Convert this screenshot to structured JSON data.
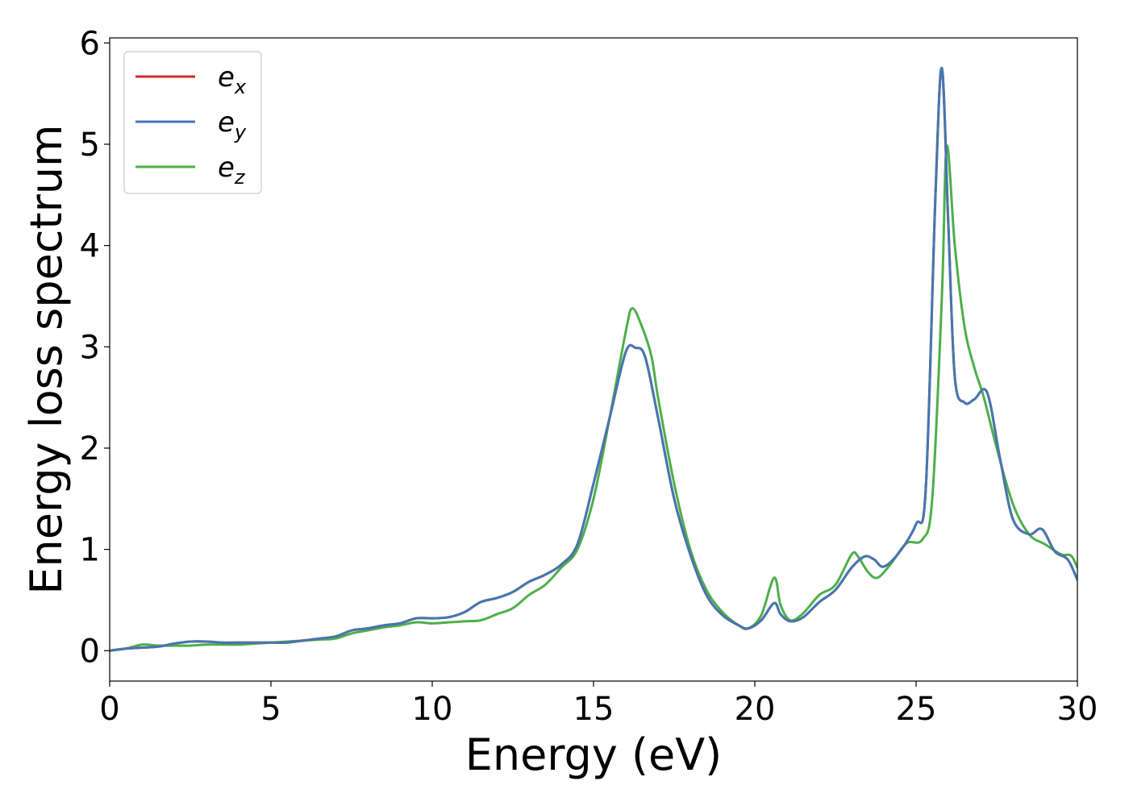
{
  "chart_data": {
    "type": "line",
    "title": "",
    "xlabel": "Energy (eV)",
    "ylabel": "Energy loss spectrum",
    "xlim": [
      0,
      30
    ],
    "ylim": [
      -0.3,
      6.05
    ],
    "xticks": [
      0,
      5,
      10,
      15,
      20,
      25,
      30
    ],
    "yticks": [
      0,
      1,
      2,
      3,
      4,
      5,
      6
    ],
    "grid": false,
    "legend_position": "top-left",
    "series": [
      {
        "name": "e_x",
        "legend_base": "e",
        "legend_sub": "x",
        "color": "#d62728",
        "x": [
          0,
          0.5,
          1,
          1.5,
          2,
          2.5,
          3,
          3.5,
          4,
          4.5,
          5,
          5.5,
          6,
          6.5,
          7,
          7.5,
          8,
          8.5,
          9,
          9.5,
          10,
          10.5,
          11,
          11.5,
          12,
          12.5,
          13,
          13.5,
          14,
          14.5,
          15,
          15.5,
          16,
          16.3,
          16.6,
          17,
          17.5,
          18,
          18.5,
          19,
          19.5,
          19.8,
          20.2,
          20.6,
          20.8,
          21.1,
          21.5,
          22,
          22.5,
          23,
          23.4,
          23.7,
          24,
          24.5,
          25,
          25.3,
          25.6,
          25.8,
          26,
          26.2,
          26.5,
          26.8,
          27.2,
          27.6,
          28,
          28.5,
          28.9,
          29.3,
          29.7,
          30
        ],
        "y": [
          0.0,
          0.02,
          0.03,
          0.04,
          0.07,
          0.09,
          0.09,
          0.08,
          0.08,
          0.08,
          0.08,
          0.08,
          0.1,
          0.12,
          0.14,
          0.2,
          0.22,
          0.25,
          0.27,
          0.32,
          0.32,
          0.33,
          0.38,
          0.48,
          0.52,
          0.58,
          0.68,
          0.75,
          0.85,
          1.05,
          1.65,
          2.3,
          2.95,
          2.99,
          2.9,
          2.3,
          1.5,
          0.95,
          0.55,
          0.35,
          0.25,
          0.22,
          0.3,
          0.47,
          0.36,
          0.29,
          0.33,
          0.48,
          0.6,
          0.82,
          0.93,
          0.9,
          0.83,
          0.98,
          1.25,
          1.6,
          4.5,
          5.75,
          4.2,
          2.7,
          2.45,
          2.48,
          2.55,
          1.9,
          1.3,
          1.15,
          1.2,
          0.98,
          0.9,
          0.7
        ]
      },
      {
        "name": "e_y",
        "legend_base": "e",
        "legend_sub": "y",
        "color": "#4477b1",
        "x": [
          0,
          0.5,
          1,
          1.5,
          2,
          2.5,
          3,
          3.5,
          4,
          4.5,
          5,
          5.5,
          6,
          6.5,
          7,
          7.5,
          8,
          8.5,
          9,
          9.5,
          10,
          10.5,
          11,
          11.5,
          12,
          12.5,
          13,
          13.5,
          14,
          14.5,
          15,
          15.5,
          16,
          16.3,
          16.6,
          17,
          17.5,
          18,
          18.5,
          19,
          19.5,
          19.8,
          20.2,
          20.6,
          20.8,
          21.1,
          21.5,
          22,
          22.5,
          23,
          23.4,
          23.7,
          24,
          24.5,
          25,
          25.3,
          25.6,
          25.8,
          26,
          26.2,
          26.5,
          26.8,
          27.2,
          27.6,
          28,
          28.5,
          28.9,
          29.3,
          29.7,
          30
        ],
        "y": [
          0.0,
          0.02,
          0.03,
          0.04,
          0.07,
          0.09,
          0.09,
          0.08,
          0.08,
          0.08,
          0.08,
          0.08,
          0.1,
          0.12,
          0.14,
          0.2,
          0.22,
          0.25,
          0.27,
          0.32,
          0.32,
          0.33,
          0.38,
          0.48,
          0.52,
          0.58,
          0.68,
          0.75,
          0.85,
          1.05,
          1.65,
          2.3,
          2.95,
          2.99,
          2.9,
          2.3,
          1.5,
          0.95,
          0.55,
          0.35,
          0.25,
          0.22,
          0.3,
          0.47,
          0.36,
          0.29,
          0.33,
          0.48,
          0.6,
          0.82,
          0.93,
          0.9,
          0.83,
          0.98,
          1.25,
          1.6,
          4.5,
          5.75,
          4.2,
          2.7,
          2.45,
          2.48,
          2.55,
          1.9,
          1.3,
          1.15,
          1.2,
          0.98,
          0.9,
          0.7
        ]
      },
      {
        "name": "e_z",
        "legend_base": "e",
        "legend_sub": "z",
        "color": "#4daf4a",
        "x": [
          0,
          0.5,
          1,
          1.5,
          2,
          2.5,
          3,
          3.5,
          4,
          4.5,
          5,
          5.5,
          6,
          6.5,
          7,
          7.5,
          8,
          8.5,
          9,
          9.5,
          10,
          10.5,
          11,
          11.5,
          12,
          12.5,
          13,
          13.5,
          14,
          14.5,
          15,
          15.5,
          16,
          16.2,
          16.5,
          16.8,
          17,
          17.5,
          18,
          18.5,
          19,
          19.5,
          19.8,
          20.2,
          20.6,
          20.8,
          21.1,
          21.5,
          22,
          22.5,
          23,
          23.2,
          23.5,
          23.8,
          24.2,
          24.7,
          25.2,
          25.5,
          25.8,
          25.95,
          26.2,
          26.5,
          26.8,
          27.1,
          27.5,
          28,
          28.5,
          29,
          29.5,
          29.8,
          30
        ],
        "y": [
          0.0,
          0.02,
          0.06,
          0.05,
          0.05,
          0.05,
          0.06,
          0.06,
          0.06,
          0.07,
          0.08,
          0.09,
          0.1,
          0.11,
          0.12,
          0.17,
          0.2,
          0.23,
          0.25,
          0.28,
          0.27,
          0.28,
          0.29,
          0.3,
          0.36,
          0.42,
          0.55,
          0.65,
          0.82,
          1.0,
          1.5,
          2.3,
          3.15,
          3.38,
          3.2,
          2.9,
          2.5,
          1.65,
          1.0,
          0.6,
          0.38,
          0.25,
          0.22,
          0.35,
          0.72,
          0.45,
          0.3,
          0.37,
          0.55,
          0.65,
          0.95,
          0.93,
          0.78,
          0.72,
          0.85,
          1.06,
          1.1,
          1.5,
          3.5,
          4.98,
          4.0,
          3.2,
          2.8,
          2.5,
          2.0,
          1.45,
          1.15,
          1.05,
          0.95,
          0.94,
          0.82
        ]
      }
    ]
  }
}
